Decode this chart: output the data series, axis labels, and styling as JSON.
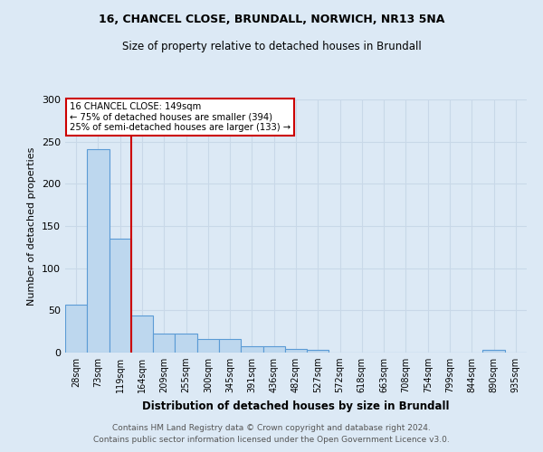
{
  "title1": "16, CHANCEL CLOSE, BRUNDALL, NORWICH, NR13 5NA",
  "title2": "Size of property relative to detached houses in Brundall",
  "xlabel": "Distribution of detached houses by size in Brundall",
  "ylabel": "Number of detached properties",
  "categories": [
    "28sqm",
    "73sqm",
    "119sqm",
    "164sqm",
    "209sqm",
    "255sqm",
    "300sqm",
    "345sqm",
    "391sqm",
    "436sqm",
    "482sqm",
    "527sqm",
    "572sqm",
    "618sqm",
    "663sqm",
    "708sqm",
    "754sqm",
    "799sqm",
    "844sqm",
    "890sqm",
    "935sqm"
  ],
  "values": [
    57,
    241,
    135,
    44,
    23,
    23,
    16,
    16,
    7,
    7,
    4,
    3,
    0,
    0,
    0,
    0,
    0,
    0,
    0,
    3,
    0
  ],
  "bar_color": "#bdd7ee",
  "bar_edge_color": "#5b9bd5",
  "background_color": "#dce9f5",
  "grid_color": "#c8d8e8",
  "vline_color": "#cc0000",
  "vline_x_idx": 2.5,
  "annotation_text": "16 CHANCEL CLOSE: 149sqm\n← 75% of detached houses are smaller (394)\n25% of semi-detached houses are larger (133) →",
  "annotation_box_color": "#ffffff",
  "annotation_box_edge": "#cc0000",
  "ylim": [
    0,
    300
  ],
  "yticks": [
    0,
    50,
    100,
    150,
    200,
    250,
    300
  ],
  "footer1": "Contains HM Land Registry data © Crown copyright and database right 2024.",
  "footer2": "Contains public sector information licensed under the Open Government Licence v3.0."
}
